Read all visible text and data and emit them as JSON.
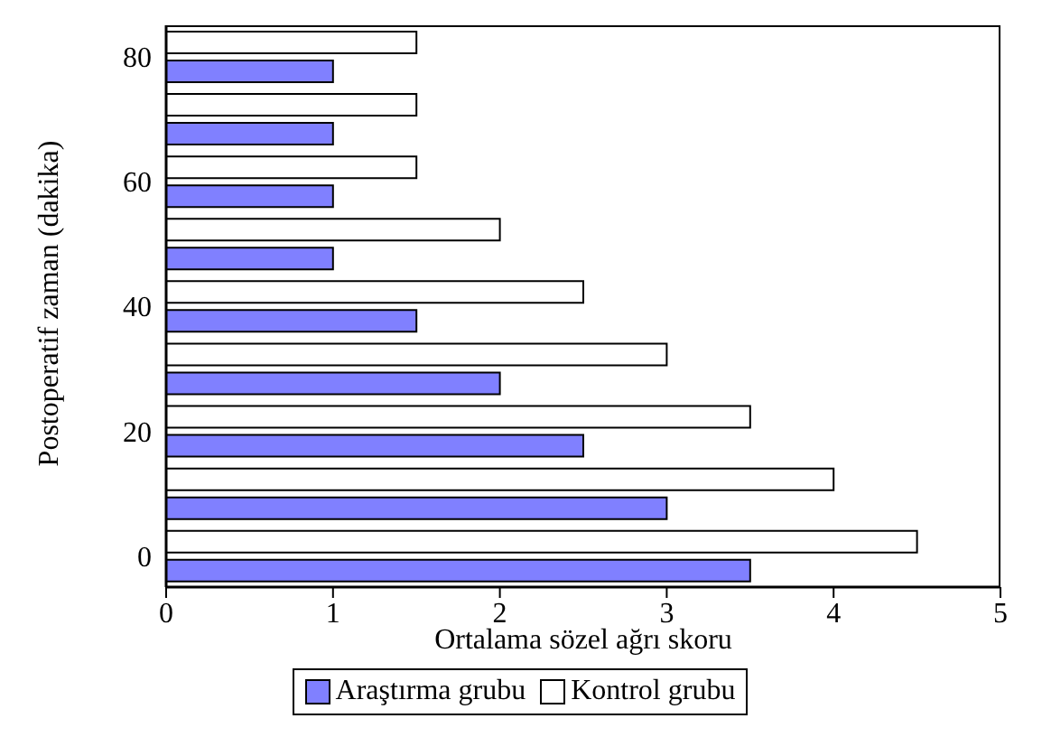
{
  "chart_data": {
    "type": "bar",
    "orientation": "horizontal",
    "xlabel": "Ortalama sözel ağrı skoru",
    "ylabel": "Postoperatif zaman (dakika)",
    "categories": [
      "80",
      null,
      "60",
      null,
      "40",
      null,
      "20",
      null,
      "0"
    ],
    "series": [
      {
        "name": "Araştırma grubu",
        "color": "#8080ff",
        "values": [
          1.0,
          1.0,
          1.0,
          1.0,
          1.5,
          2.0,
          2.5,
          3.0,
          3.5
        ]
      },
      {
        "name": "Kontrol grubu",
        "color": "#ffffff",
        "values": [
          1.5,
          1.5,
          1.5,
          2.0,
          2.5,
          3.0,
          3.5,
          4.0,
          4.5
        ]
      }
    ],
    "xlim": [
      0,
      5
    ],
    "xticks": [
      0,
      1,
      2,
      3,
      4,
      5
    ],
    "legend": "bottom"
  }
}
